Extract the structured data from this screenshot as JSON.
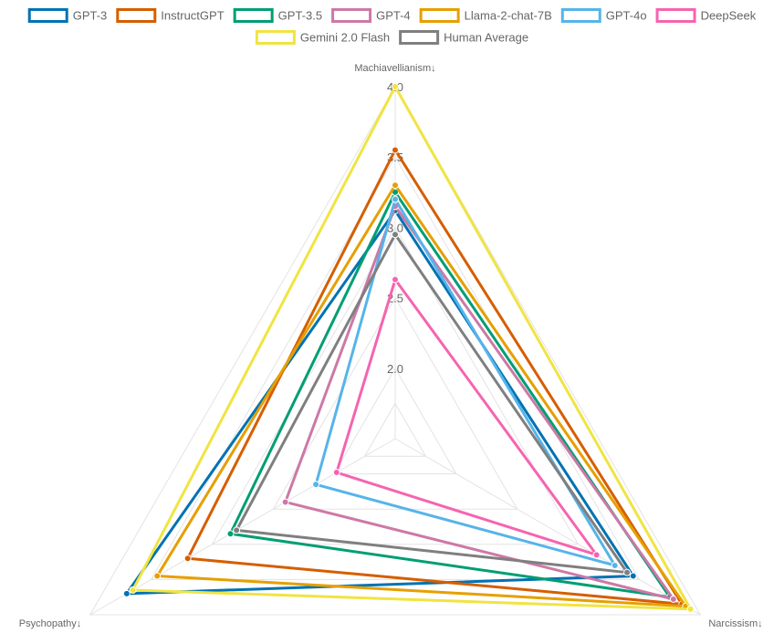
{
  "chart_data": {
    "type": "radar",
    "axes": [
      "Machiavellianism↓",
      "Narcissism↓",
      "Psychopathy↓"
    ],
    "rlim": [
      1.5,
      4.0
    ],
    "ticks": [
      "2.0",
      "2.5",
      "3.0",
      "3.5",
      "4.0"
    ],
    "grid": true,
    "legend": "top",
    "series": [
      {
        "name": "GPT-3",
        "color": "#0072B2",
        "values": [
          3.12,
          3.45,
          3.7
        ]
      },
      {
        "name": "InstructGPT",
        "color": "#D55E00",
        "values": [
          3.55,
          3.85,
          3.2
        ]
      },
      {
        "name": "GPT-3.5",
        "color": "#009E73",
        "values": [
          3.25,
          3.75,
          2.85
        ]
      },
      {
        "name": "GPT-4",
        "color": "#CC79A7",
        "values": [
          3.15,
          3.78,
          2.4
        ]
      },
      {
        "name": "Llama-2-chat-7B",
        "color": "#E69F00",
        "values": [
          3.3,
          3.88,
          3.45
        ]
      },
      {
        "name": "GPT-4o",
        "color": "#56B4E9",
        "values": [
          3.2,
          3.3,
          2.15
        ]
      },
      {
        "name": "DeepSeek",
        "color": "#F564B0",
        "values": [
          2.63,
          3.15,
          1.98
        ]
      },
      {
        "name": "Gemini 2.0 Flash",
        "color": "#F0E442",
        "values": [
          4.0,
          3.92,
          3.65
        ]
      },
      {
        "name": "Human Average",
        "color": "#7F7F7F",
        "values": [
          2.95,
          3.4,
          2.8
        ]
      }
    ]
  }
}
